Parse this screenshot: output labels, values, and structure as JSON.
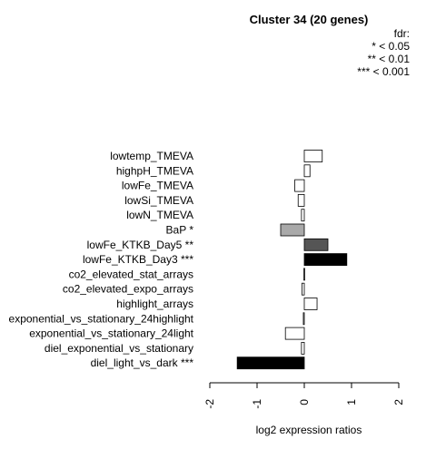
{
  "chart_data": {
    "type": "bar",
    "orientation": "horizontal",
    "title": "Cluster 34 (20 genes)",
    "xlabel": "log2 expression ratios",
    "ylabel": "",
    "xlim": [
      -2,
      2
    ],
    "xticks": [
      "-2",
      "-1",
      "0",
      "1",
      "2"
    ],
    "legend": {
      "title": "fdr:",
      "entries": [
        "* < 0.05",
        "** < 0.01",
        "*** < 0.001"
      ],
      "placement": "top-right"
    },
    "categories": [
      "lowtemp_TMEVA",
      "highpH_TMEVA",
      "lowFe_TMEVA",
      "lowSi_TMEVA",
      "lowN_TMEVA",
      "BaP *",
      "lowFe_KTKB_Day5 **",
      "lowFe_KTKB_Day3 ***",
      "co2_elevated_stat_arrays",
      "co2_elevated_expo_arrays",
      "highlight_arrays",
      "exponential_vs_stationary_24highlight",
      "exponential_vs_stationary_24light",
      "diel_exponential_vs_stationary",
      "diel_light_vs_dark ***"
    ],
    "values": [
      0.38,
      0.12,
      -0.2,
      -0.13,
      -0.06,
      -0.5,
      0.5,
      0.9,
      -0.01,
      -0.05,
      0.27,
      -0.02,
      -0.4,
      -0.06,
      -1.42
    ],
    "bar_colors": [
      "#ffffff",
      "#ffffff",
      "#ffffff",
      "#ffffff",
      "#ffffff",
      "#a9a9a9",
      "#555555",
      "#000000",
      "#ffffff",
      "#ffffff",
      "#ffffff",
      "#ffffff",
      "#ffffff",
      "#ffffff",
      "#000000"
    ],
    "grid": false
  }
}
